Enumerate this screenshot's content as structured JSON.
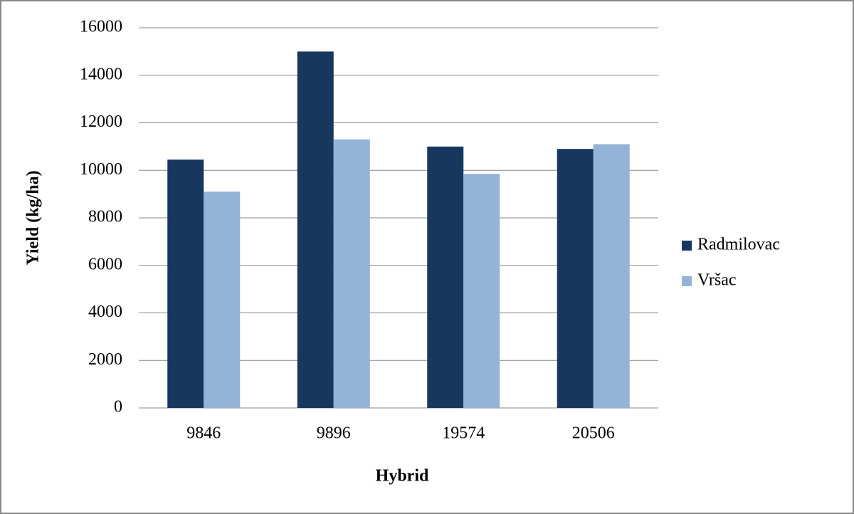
{
  "chart_data": {
    "type": "bar",
    "categories": [
      "9846",
      "9896",
      "19574",
      "20506"
    ],
    "series": [
      {
        "name": "Radmilovac",
        "color": "#17375e",
        "values": [
          10450,
          15000,
          11000,
          10900
        ]
      },
      {
        "name": "Vršac",
        "color": "#95b3d7",
        "values": [
          9100,
          11300,
          9850,
          11100
        ]
      }
    ],
    "ylim": [
      0,
      16000
    ],
    "yticks": [
      0,
      2000,
      4000,
      6000,
      8000,
      10000,
      12000,
      14000,
      16000
    ],
    "x_label": "Hybrid",
    "y_label": "Yield (kg/ha)",
    "grid": true,
    "legend": "right"
  }
}
